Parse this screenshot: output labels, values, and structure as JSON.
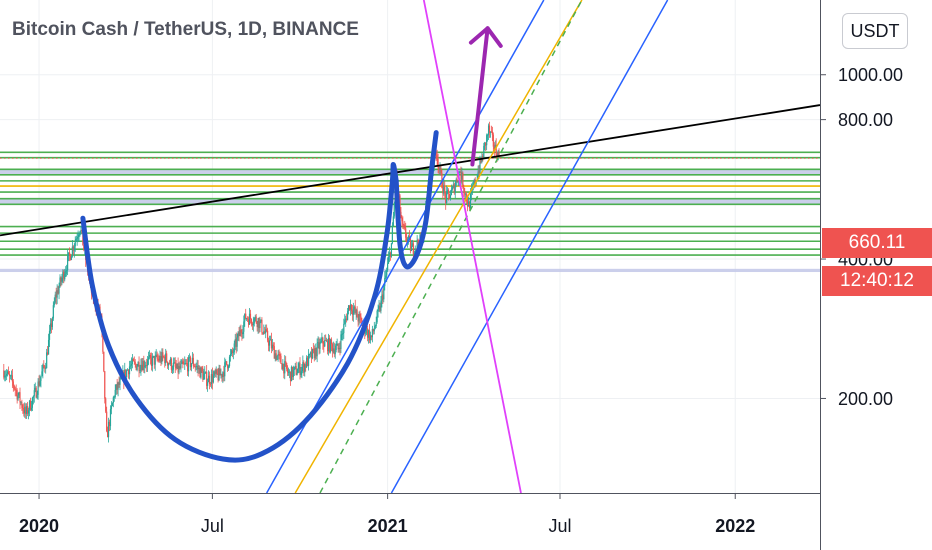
{
  "header": {
    "title": "Bitcoin Cash / TetherUS, 1D, BINANCE"
  },
  "toolbar": {
    "currency_label": "USDT"
  },
  "price_scale": {
    "last_price": "660.11",
    "countdown": "12:40:12",
    "badge_color": "#ef5350"
  },
  "chart_data": {
    "type": "candlestick",
    "title": "Bitcoin Cash / TetherUS, 1D, BINANCE",
    "y_scale": "log",
    "ylim": [
      125,
      1450
    ],
    "xlim": [
      "2019-11-21",
      "2022-03-31"
    ],
    "y_ticks": [
      {
        "value": 200,
        "label": "200.00"
      },
      {
        "value": 400,
        "label": "400.00"
      },
      {
        "value": 800,
        "label": "800.00"
      },
      {
        "value": 1000,
        "label": "1000.00"
      }
    ],
    "x_ticks": [
      {
        "date": "2020-01-01",
        "label": "2020",
        "bold": true
      },
      {
        "date": "2020-07-01",
        "label": "Jul",
        "bold": false
      },
      {
        "date": "2021-01-01",
        "label": "2021",
        "bold": true
      },
      {
        "date": "2021-07-01",
        "label": "Jul",
        "bold": false
      },
      {
        "date": "2022-01-01",
        "label": "2022",
        "bold": true
      }
    ],
    "grid": true,
    "last_price": 660.11,
    "colors": {
      "up": "#26a69a",
      "down": "#ef5350"
    },
    "price_path": [
      [
        "2019-11-25",
        230
      ],
      [
        "2019-12-05",
        215
      ],
      [
        "2019-12-18",
        185
      ],
      [
        "2019-12-28",
        205
      ],
      [
        "2020-01-08",
        240
      ],
      [
        "2020-01-18",
        330
      ],
      [
        "2020-01-30",
        390
      ],
      [
        "2020-02-13",
        470
      ],
      [
        "2020-02-25",
        340
      ],
      [
        "2020-03-06",
        300
      ],
      [
        "2020-03-12",
        165
      ],
      [
        "2020-03-20",
        205
      ],
      [
        "2020-04-05",
        235
      ],
      [
        "2020-04-25",
        240
      ],
      [
        "2020-05-12",
        245
      ],
      [
        "2020-05-25",
        230
      ],
      [
        "2020-06-10",
        240
      ],
      [
        "2020-06-25",
        220
      ],
      [
        "2020-07-10",
        225
      ],
      [
        "2020-07-22",
        250
      ],
      [
        "2020-08-05",
        300
      ],
      [
        "2020-08-18",
        295
      ],
      [
        "2020-09-05",
        250
      ],
      [
        "2020-09-20",
        225
      ],
      [
        "2020-10-05",
        235
      ],
      [
        "2020-10-25",
        265
      ],
      [
        "2020-11-10",
        255
      ],
      [
        "2020-11-22",
        320
      ],
      [
        "2020-12-05",
        290
      ],
      [
        "2020-12-15",
        270
      ],
      [
        "2020-12-25",
        320
      ],
      [
        "2021-01-05",
        430
      ],
      [
        "2021-01-10",
        600
      ],
      [
        "2021-01-16",
        470
      ],
      [
        "2021-01-26",
        420
      ],
      [
        "2021-02-06",
        440
      ],
      [
        "2021-02-13",
        580
      ],
      [
        "2021-02-21",
        690
      ],
      [
        "2021-02-25",
        610
      ],
      [
        "2021-03-03",
        540
      ],
      [
        "2021-03-10",
        560
      ],
      [
        "2021-03-18",
        620
      ],
      [
        "2021-03-27",
        520
      ],
      [
        "2021-04-03",
        590
      ],
      [
        "2021-04-10",
        660
      ],
      [
        "2021-04-17",
        760
      ],
      [
        "2021-04-24",
        690
      ],
      [
        "2021-04-29",
        660.11
      ]
    ],
    "horizontal_levels": [
      {
        "value": 680,
        "color": "#4caf50"
      },
      {
        "value": 662,
        "color": "#4caf50"
      },
      {
        "value": 625,
        "color": "#4caf50"
      },
      {
        "value": 608,
        "color": "#4caf50"
      },
      {
        "value": 590,
        "color": "#4caf50"
      },
      {
        "value": 558,
        "color": "#4caf50"
      },
      {
        "value": 540,
        "color": "#4caf50"
      },
      {
        "value": 525,
        "color": "#4caf50"
      },
      {
        "value": 470,
        "color": "#4caf50"
      },
      {
        "value": 455,
        "color": "#4caf50"
      },
      {
        "value": 437,
        "color": "#4caf50"
      },
      {
        "value": 420,
        "color": "#4caf50"
      },
      {
        "value": 408,
        "color": "#4caf50"
      },
      {
        "value": 575,
        "color": "#f0b400"
      }
    ],
    "zones": [
      {
        "from": 608,
        "to": 625,
        "color": "#c5cae9"
      },
      {
        "from": 525,
        "to": 540,
        "color": "#c5cae9"
      },
      {
        "from": 375,
        "to": 381,
        "color": "#c5cae9"
      }
    ],
    "trendlines": [
      {
        "name": "resistance",
        "color": "#000000",
        "from": [
          "2019-11-21",
          450
        ],
        "to": [
          "2022-03-31",
          860
        ]
      },
      {
        "name": "channel-upper",
        "color": "#2962ff",
        "from": [
          "2020-08-27",
          125
        ],
        "to": [
          "2021-06-14",
          1450
        ]
      },
      {
        "name": "channel-lower",
        "color": "#2962ff",
        "from": [
          "2021-01-05",
          125
        ],
        "to": [
          "2021-10-22",
          1450
        ]
      },
      {
        "name": "yellow-line",
        "color": "#f0b400",
        "from": [
          "2020-09-26",
          125
        ],
        "to": [
          "2021-07-24",
          1450
        ]
      },
      {
        "name": "green-dashed",
        "color": "#4caf50",
        "from": [
          "2020-10-22",
          125
        ],
        "to": [
          "2021-07-24",
          1450
        ]
      },
      {
        "name": "magenta-line",
        "color": "#e040fb",
        "from": [
          "2021-02-08",
          1450
        ],
        "to": [
          "2021-05-21",
          125
        ]
      }
    ],
    "annotations": {
      "cup_color": "#2352c8",
      "cup_path": [
        [
          "2020-02-16",
          490
        ],
        [
          "2020-02-26",
          350
        ],
        [
          "2020-03-14",
          260
        ],
        [
          "2020-04-12",
          200
        ],
        [
          "2020-05-23",
          163
        ],
        [
          "2020-07-12",
          148
        ],
        [
          "2020-08-22",
          152
        ],
        [
          "2020-10-06",
          178
        ],
        [
          "2020-11-20",
          238
        ],
        [
          "2020-12-18",
          330
        ],
        [
          "2020-12-31",
          450
        ],
        [
          "2021-01-06",
          590
        ],
        [
          "2021-01-07",
          640
        ],
        [
          "2021-01-10",
          590
        ]
      ],
      "handle_path": [
        [
          "2021-01-10",
          590
        ],
        [
          "2021-01-14",
          430
        ],
        [
          "2021-01-21",
          385
        ],
        [
          "2021-02-01",
          410
        ],
        [
          "2021-02-10",
          480
        ],
        [
          "2021-02-16",
          620
        ],
        [
          "2021-02-21",
          750
        ]
      ],
      "arrow_color": "#9c27b0",
      "arrow": {
        "from": [
          "2021-03-31",
          640
        ],
        "to": [
          "2021-04-16",
          1260
        ]
      }
    }
  }
}
